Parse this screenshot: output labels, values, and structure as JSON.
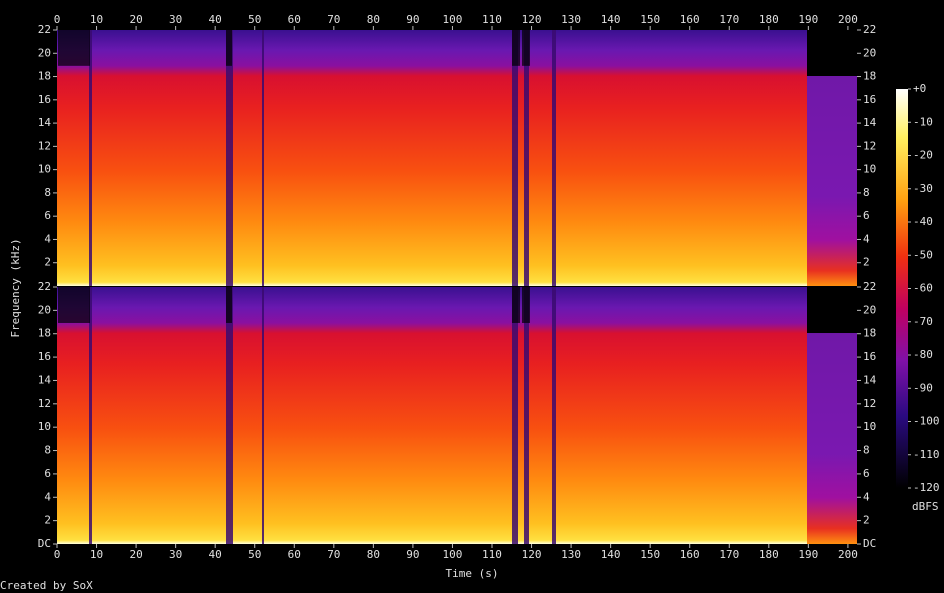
{
  "chart_data": {
    "type": "spectrogram",
    "x_label": "Time (s)",
    "y_label": "Frequency (kHz)",
    "xlim": [
      0,
      202.3
    ],
    "xticks": [
      0,
      10,
      20,
      30,
      40,
      50,
      60,
      70,
      80,
      90,
      100,
      110,
      120,
      130,
      140,
      150,
      160,
      170,
      180,
      190,
      200
    ],
    "channels": [
      {
        "ylim": [
          0,
          22
        ],
        "yticks": [
          2,
          4,
          6,
          8,
          10,
          12,
          14,
          16,
          18,
          20,
          22
        ]
      },
      {
        "ylim": [
          0,
          22
        ],
        "yticks": [
          {
            "value": 0,
            "label": "DC"
          },
          2,
          4,
          6,
          8,
          10,
          12,
          14,
          16,
          18,
          20,
          22
        ]
      }
    ],
    "colorbar": {
      "label": "dBFS",
      "lim": [
        -120,
        0
      ],
      "ticks": [
        {
          "value": 0,
          "label": "+0"
        },
        -10,
        -20,
        -30,
        -40,
        -50,
        -60,
        -70,
        -80,
        -90,
        -100,
        -110,
        -120
      ]
    }
  },
  "credit": "Created by SoX"
}
